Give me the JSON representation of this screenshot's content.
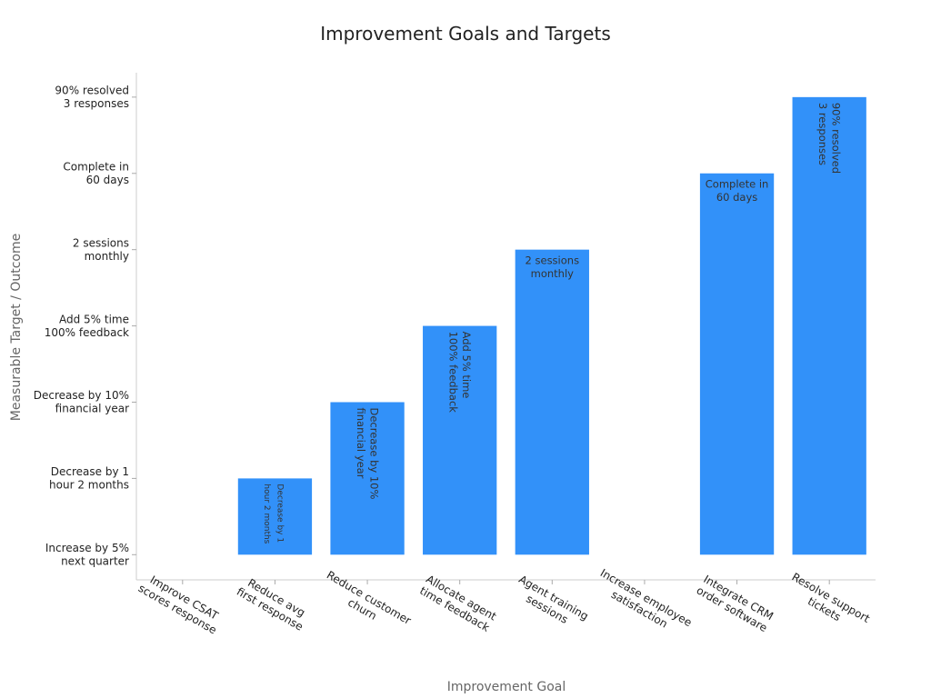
{
  "chart_data": {
    "type": "bar",
    "title": "Improvement Goals and Targets",
    "x_label": "Improvement Goal",
    "y_label": "Measurable Target / Outcome",
    "categories": [
      "Improve CSAT\nscores response",
      "Reduce avg\nfirst response",
      "Reduce customer\nchurn",
      "Allocate agent\ntime feedback",
      "Agent training\nsessions",
      "Increase employee\nsatisfaction",
      "Integrate CRM\norder software",
      "Resolve support\ntickets"
    ],
    "values": [
      0,
      1,
      2,
      3,
      4,
      0,
      5,
      6
    ],
    "value_labels": [
      null,
      "Decrease by 1\nhour 2 months",
      "Decrease by 10%\nfinancial year",
      "Add 5% time\n100% feedback",
      "2 sessions\nmonthly",
      null,
      "Complete in\n60 days",
      "90% resolved\n3 responses"
    ],
    "color": "#3291f9",
    "ylim": [
      -0.33,
      6.32
    ],
    "yticks": [
      {
        "value": 0,
        "label": "Increase by 5%\nnext quarter"
      },
      {
        "value": 1,
        "label": "Decrease by 1\nhour 2 months"
      },
      {
        "value": 2,
        "label": "Decrease by 10%\nfinancial year"
      },
      {
        "value": 3,
        "label": "Add 5% time\n100% feedback"
      },
      {
        "value": 4,
        "label": "2 sessions\nmonthly"
      },
      {
        "value": 5,
        "label": "Complete in\n60 days"
      },
      {
        "value": 6,
        "label": "90% resolved\n3 responses"
      }
    ],
    "grid": false
  }
}
